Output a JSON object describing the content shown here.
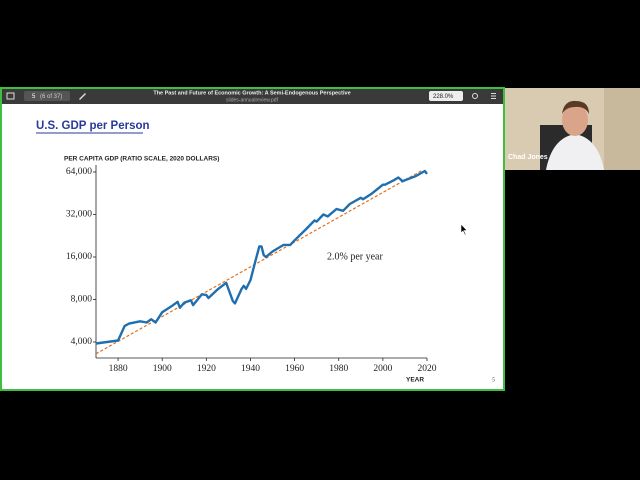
{
  "viewer": {
    "page_number": "5",
    "page_count": "(6 of 37)",
    "title": "The Past and Future of Economic Growth:  A Semi-Endogenous Perspective",
    "filename": "slides-annualreview.pdf",
    "zoom": "228.0%"
  },
  "slide": {
    "title": "U.S. GDP per Person",
    "page_number": "5"
  },
  "participant": {
    "name": "Chad Jones"
  },
  "chart_data": {
    "type": "line",
    "y_label": "PER CAPITA GDP (RATIO SCALE, 2020 DOLLARS)",
    "x_label": "YEAR",
    "annotation": "2.0% per year",
    "log_scale": true,
    "x": [
      1870,
      1875,
      1880,
      1883,
      1885,
      1890,
      1893,
      1895,
      1897,
      1900,
      1905,
      1907,
      1908,
      1910,
      1913,
      1914,
      1918,
      1920,
      1921,
      1925,
      1929,
      1930,
      1932,
      1933,
      1936,
      1937,
      1938,
      1940,
      1942,
      1944,
      1945,
      1946,
      1947,
      1950,
      1955,
      1958,
      1960,
      1965,
      1969,
      1970,
      1973,
      1975,
      1979,
      1982,
      1985,
      1990,
      1991,
      1995,
      2000,
      2001,
      2005,
      2007,
      2009,
      2010,
      2015,
      2019,
      2020
    ],
    "series": [
      {
        "color": "#1f6fb0",
        "values": [
          3900,
          4000,
          4100,
          5200,
          5400,
          5600,
          5500,
          5800,
          5500,
          6500,
          7300,
          7700,
          7000,
          7600,
          7900,
          7300,
          8700,
          8600,
          8200,
          9400,
          10500,
          9500,
          7800,
          7500,
          9500,
          10000,
          9500,
          11000,
          14500,
          19000,
          19000,
          16500,
          16000,
          17500,
          19500,
          19500,
          21000,
          25000,
          29000,
          28500,
          32000,
          31000,
          35000,
          34000,
          38000,
          42000,
          41000,
          45000,
          52000,
          52000,
          56000,
          58500,
          55000,
          56000,
          60000,
          65000,
          62000
        ]
      }
    ],
    "trend": {
      "color": "#e07020",
      "x": [
        1870,
        2018
      ],
      "values": [
        3300,
        66000
      ]
    },
    "xlim": [
      1870,
      2020
    ],
    "ylim": [
      3080,
      70000
    ],
    "xticks": [
      1880,
      1900,
      1920,
      1940,
      1960,
      1980,
      2000,
      2020
    ],
    "yticks": [
      {
        "value": 4000,
        "label": "4,000"
      },
      {
        "value": 8000,
        "label": "8,000"
      },
      {
        "value": 16000,
        "label": "16,000"
      },
      {
        "value": 32000,
        "label": "32,000"
      },
      {
        "value": 64000,
        "label": "64,000"
      }
    ]
  }
}
